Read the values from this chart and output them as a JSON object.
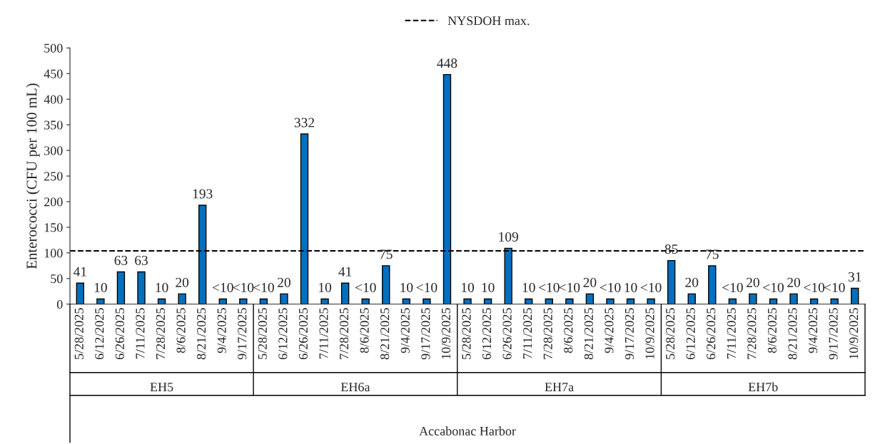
{
  "chart_data": {
    "type": "bar",
    "ylabel": "Enterococci (CFU per 100 mL)",
    "categories": [
      "5/28/2025",
      "6/12/2025",
      "6/26/2025",
      "7/11/2025",
      "7/28/2025",
      "8/6/2025",
      "8/21/2025",
      "9/4/2025",
      "9/17/2025",
      "5/28/2025",
      "6/12/2025",
      "6/26/2025",
      "7/11/2025",
      "7/28/2025",
      "8/6/2025",
      "8/21/2025",
      "9/4/2025",
      "9/17/2025",
      "10/9/2025",
      "5/28/2025",
      "6/12/2025",
      "6/26/2025",
      "7/11/2025",
      "7/28/2025",
      "8/6/2025",
      "8/21/2025",
      "9/4/2025",
      "9/17/2025",
      "10/9/2025",
      "5/28/2025",
      "6/12/2025",
      "6/26/2025",
      "7/11/2025",
      "7/28/2025",
      "8/6/2025",
      "8/21/2025",
      "9/4/2025",
      "9/17/2025",
      "10/9/2025"
    ],
    "values": [
      41,
      10,
      63,
      63,
      10,
      20,
      193,
      10,
      10,
      10,
      20,
      332,
      10,
      41,
      10,
      75,
      10,
      10,
      448,
      10,
      10,
      109,
      10,
      10,
      10,
      20,
      10,
      10,
      10,
      85,
      20,
      75,
      10,
      20,
      10,
      20,
      10,
      10,
      31
    ],
    "value_labels": [
      "41",
      "10",
      "63",
      "63",
      "10",
      "20",
      "193",
      "<10",
      "<10",
      "<10",
      "20",
      "332",
      "10",
      "41",
      "<10",
      "75",
      "10",
      "<10",
      "448",
      "10",
      "10",
      "109",
      "10",
      "<10",
      "<10",
      "20",
      "<10",
      "10",
      "<10",
      "85",
      "20",
      "75",
      "<10",
      "20",
      "<10",
      "20",
      "<10",
      "<10",
      "31"
    ],
    "color": "#0070c0",
    "annotations": [
      "EH5",
      "EH6a",
      "EH7a",
      "EH7b",
      "Accabonac Harbor"
    ],
    "ref_lines": [
      {
        "axis": "y",
        "value": 104,
        "label": "NYSDOH max.",
        "color": "#000000",
        "line_style": "dashed"
      }
    ],
    "ylim": [
      0,
      500
    ],
    "yticks": [
      0,
      50,
      100,
      150,
      200,
      250,
      300,
      350,
      400,
      450,
      500
    ],
    "grid": false,
    "legend": "top"
  }
}
